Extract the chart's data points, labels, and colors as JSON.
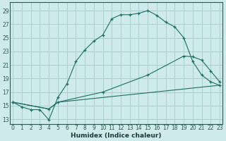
{
  "xlabel": "Humidex (Indice chaleur)",
  "background_color": "#ceeaea",
  "grid_color": "#aacfcf",
  "line_color": "#1a6e64",
  "x_ticks": [
    0,
    1,
    2,
    3,
    4,
    5,
    6,
    7,
    8,
    9,
    10,
    11,
    12,
    13,
    14,
    15,
    16,
    17,
    18,
    19,
    20,
    21,
    22,
    23
  ],
  "y_ticks": [
    13,
    15,
    17,
    19,
    21,
    23,
    25,
    27,
    29
  ],
  "xlim": [
    -0.3,
    23.3
  ],
  "ylim": [
    12.3,
    30.2
  ],
  "line1_x": [
    0,
    1,
    2,
    3,
    4,
    5,
    6,
    7,
    8,
    9,
    10,
    11,
    12,
    13,
    14,
    15,
    16,
    17,
    18,
    19,
    20,
    21,
    22,
    23
  ],
  "line1_y": [
    15.5,
    14.8,
    14.4,
    14.4,
    12.9,
    16.2,
    18.2,
    21.5,
    23.2,
    24.5,
    25.4,
    27.8,
    28.4,
    28.4,
    28.6,
    29.0,
    28.3,
    27.3,
    26.6,
    25.0,
    21.5,
    19.5,
    18.5,
    18.0
  ],
  "line2_x": [
    0,
    4,
    5,
    23
  ],
  "line2_y": [
    15.5,
    14.5,
    15.5,
    18.0
  ],
  "line3_x": [
    0,
    4,
    5,
    10,
    15,
    19,
    20,
    21,
    22,
    23
  ],
  "line3_y": [
    15.5,
    14.5,
    15.5,
    17.0,
    19.5,
    22.3,
    22.2,
    21.7,
    20.1,
    18.5
  ]
}
